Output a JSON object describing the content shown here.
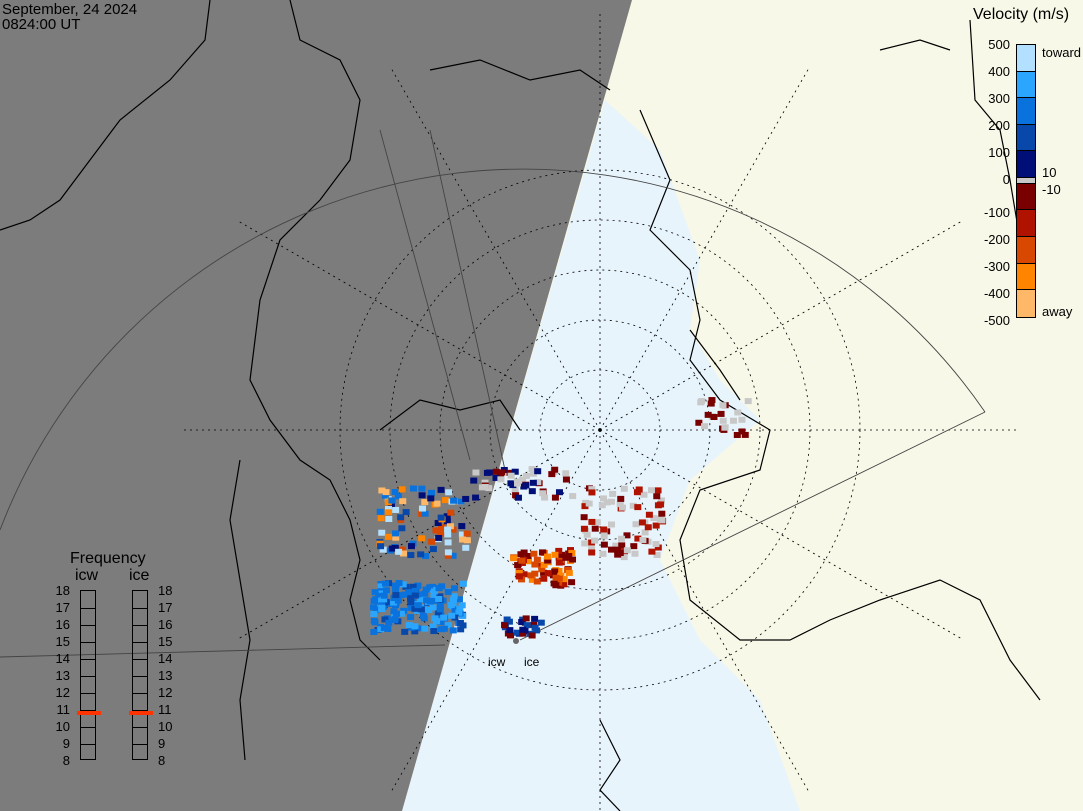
{
  "header": {
    "date": "September, 24 2024",
    "time": "0824:00 UT"
  },
  "colorbar": {
    "title": "Velocity (m/s)",
    "ticks": [
      "500",
      "400",
      "300",
      "200",
      "100",
      "0",
      "-100",
      "-200",
      "-300",
      "-400",
      "-500"
    ],
    "inner_labels": {
      "pos": "10",
      "neg": "-10"
    },
    "end_labels": {
      "top": "toward",
      "bottom": "away"
    },
    "colors": [
      "#b4e0ff",
      "#2aa6ff",
      "#0a72dc",
      "#0848aa",
      "#000e78",
      "#c8c8c8",
      "#780000",
      "#b01200",
      "#d84800",
      "#ff8400",
      "#ffb868"
    ]
  },
  "frequency": {
    "title": "Frequency",
    "radars": [
      {
        "name": "icw",
        "value_mhz": 10.8
      },
      {
        "name": "ice",
        "value_mhz": 10.8
      }
    ],
    "ticks": [
      "18",
      "17",
      "16",
      "15",
      "14",
      "13",
      "12",
      "11",
      "10",
      "9",
      "8"
    ],
    "marker_color": "#ff3300"
  },
  "map": {
    "station_labels": [
      "icw",
      "ice"
    ],
    "colors": {
      "night": "#7c7c7c",
      "land": "#f8f8e8",
      "ocean": "#e8f4fc",
      "ground_scatter": "#c8c8c8"
    }
  }
}
